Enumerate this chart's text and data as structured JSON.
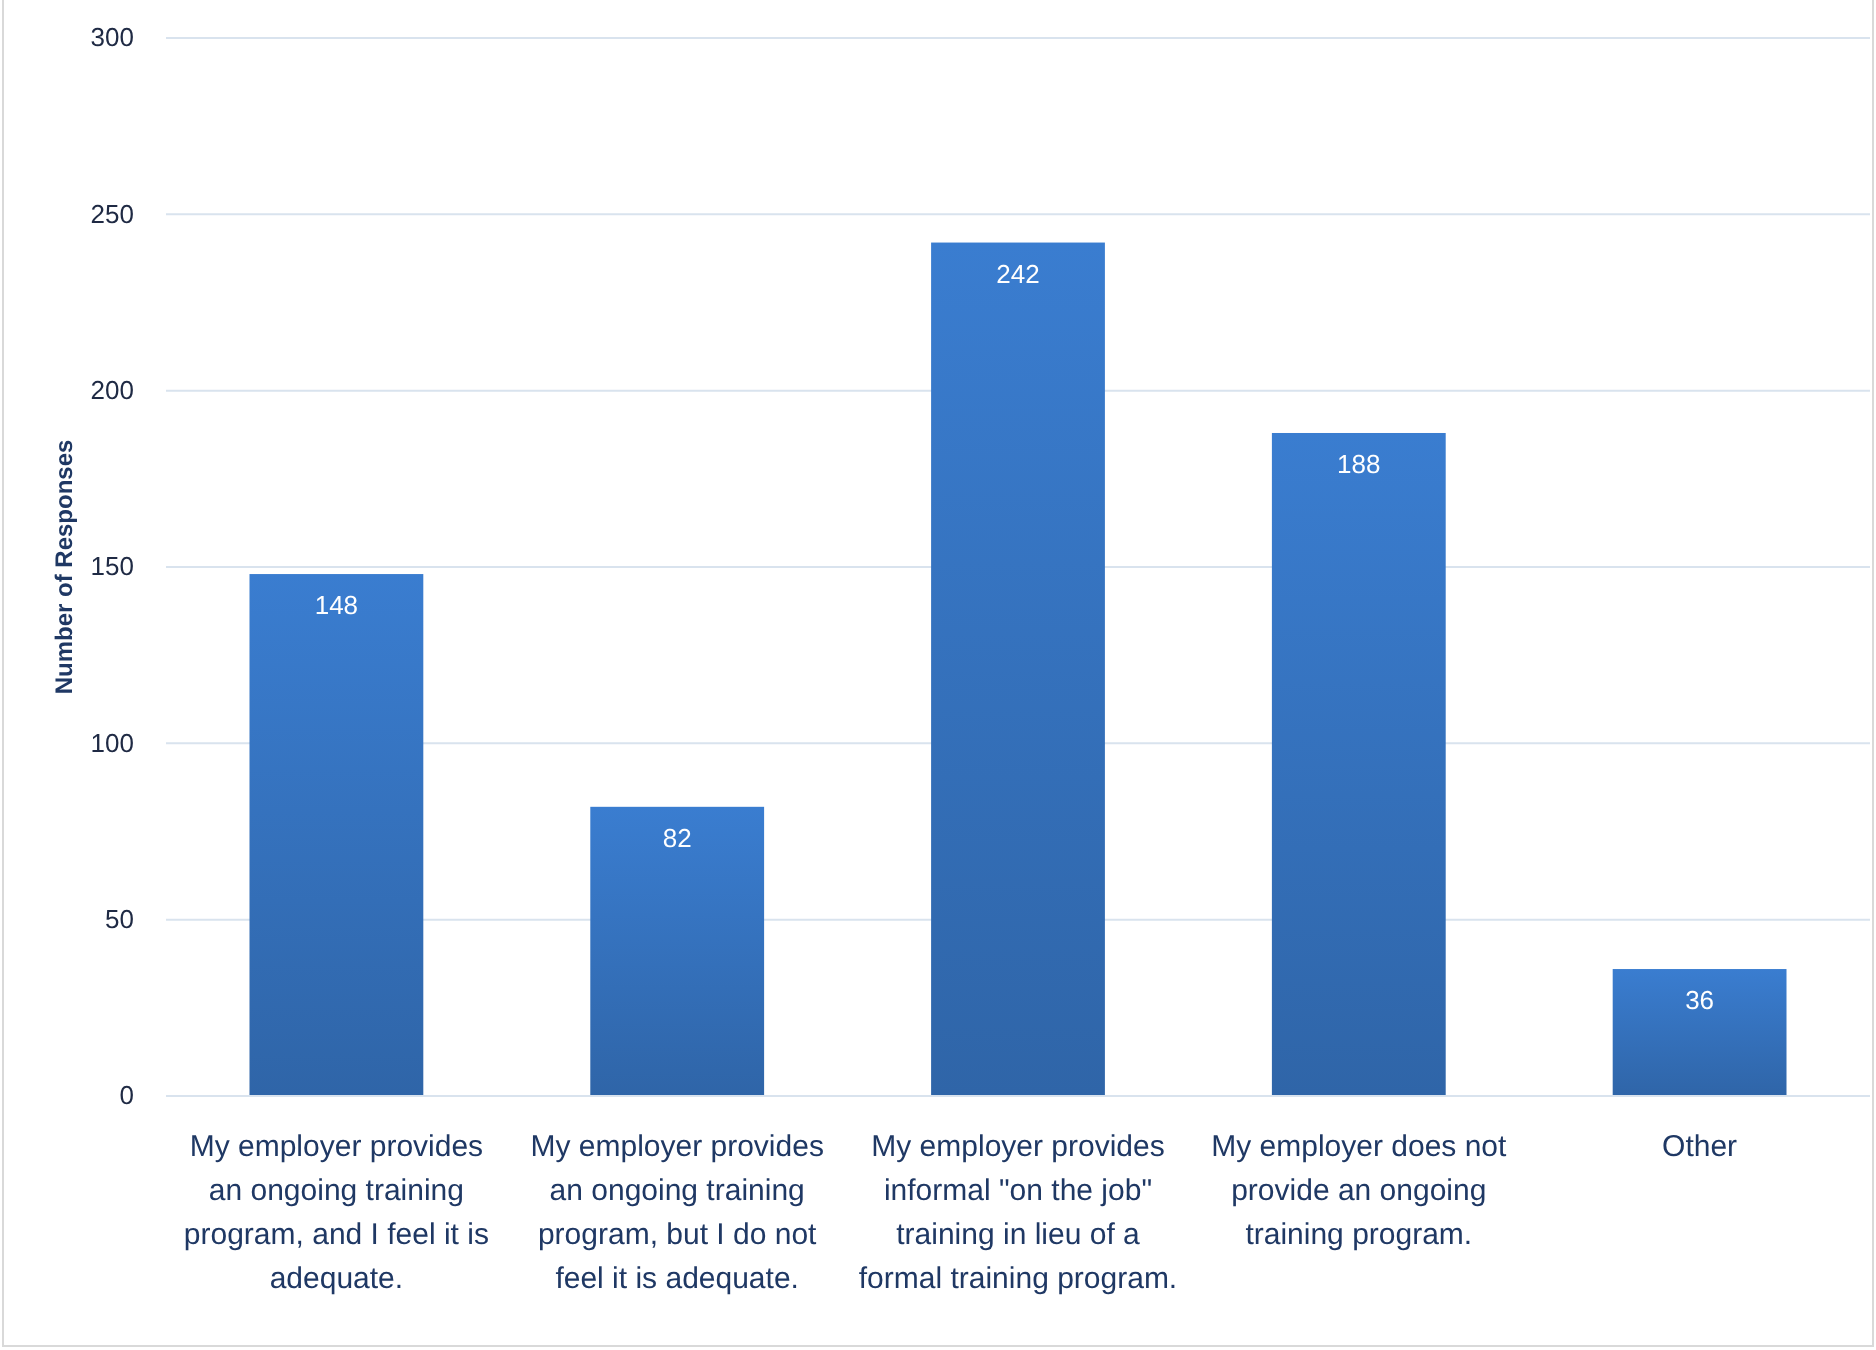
{
  "chart_data": {
    "type": "bar",
    "ylabel": "Number of Responses",
    "categories": [
      "My employer provides an ongoing training program, and I feel it is adequate.",
      "My employer provides an ongoing training program, but I do not feel it is adequate.",
      "My employer provides informal \"on the job\" training in lieu of a formal training program.",
      "My employer does not provide an ongoing training program.",
      "Other"
    ],
    "values": [
      148,
      82,
      242,
      188,
      36
    ],
    "color": "#3a7dd0",
    "ylim": [
      0,
      300
    ],
    "yticks": [
      0,
      50,
      100,
      150,
      200,
      250,
      300
    ],
    "grid": "y",
    "data_labels": true
  }
}
